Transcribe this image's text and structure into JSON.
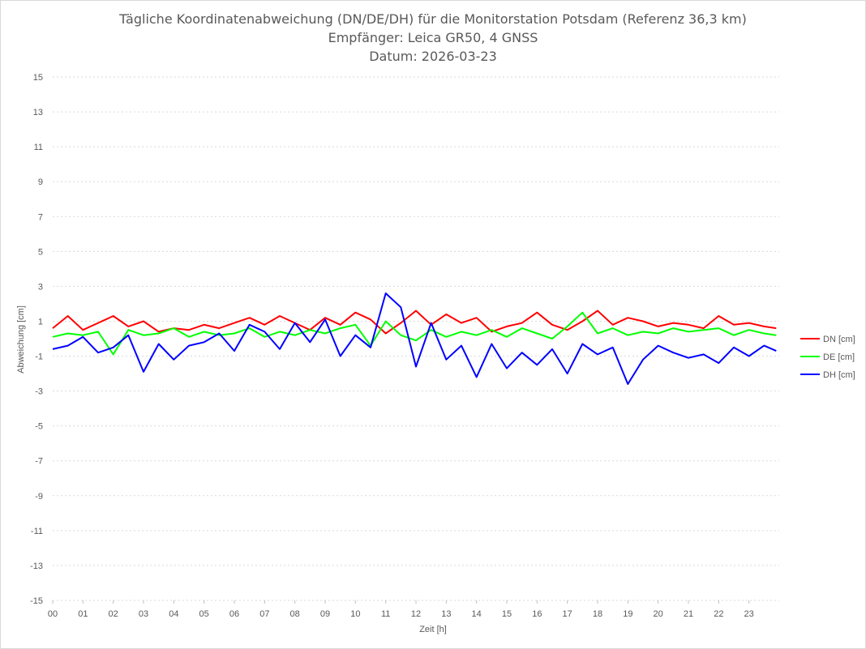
{
  "chart_data": {
    "type": "line",
    "title_lines": [
      "Tägliche Koordinatenabweichung (DN/DE/DH) für die Monitorstation Potsdam (Referenz 36,3 km)",
      "Empfänger: Leica GR50, 4 GNSS",
      "Datum: 2026-03-23"
    ],
    "xlabel": "Zeit [h]",
    "ylabel": "Abweichung [cm]",
    "xlim": [
      0,
      24
    ],
    "ylim": [
      -15,
      15
    ],
    "y_ticks": [
      15,
      13,
      11,
      9,
      7,
      5,
      3,
      1,
      -1,
      -3,
      -5,
      -7,
      -9,
      -11,
      -13,
      -15
    ],
    "x_ticks": [
      "00",
      "01",
      "02",
      "03",
      "04",
      "05",
      "06",
      "07",
      "08",
      "09",
      "10",
      "11",
      "12",
      "13",
      "14",
      "15",
      "16",
      "17",
      "18",
      "19",
      "20",
      "21",
      "22",
      "23"
    ],
    "grid": "horizontal dashed",
    "legend_position": "right",
    "series": [
      {
        "name": "DN [cm]",
        "color": "#ff0000",
        "x": [
          0,
          0.5,
          1,
          1.5,
          2,
          2.5,
          3,
          3.5,
          4,
          4.5,
          5,
          5.5,
          6,
          6.5,
          7,
          7.5,
          8,
          8.5,
          9,
          9.5,
          10,
          10.5,
          11,
          11.5,
          12,
          12.5,
          13,
          13.5,
          14,
          14.5,
          15,
          15.5,
          16,
          16.5,
          17,
          17.5,
          18,
          18.5,
          19,
          19.5,
          20,
          20.5,
          21,
          21.5,
          22,
          22.5,
          23,
          23.5,
          23.9
        ],
        "values": [
          0.6,
          1.3,
          0.5,
          0.9,
          1.3,
          0.7,
          1.0,
          0.4,
          0.6,
          0.5,
          0.8,
          0.6,
          0.9,
          1.2,
          0.8,
          1.3,
          0.9,
          0.5,
          1.2,
          0.8,
          1.5,
          1.1,
          0.3,
          0.9,
          1.6,
          0.8,
          1.4,
          0.9,
          1.2,
          0.4,
          0.7,
          0.9,
          1.5,
          0.8,
          0.5,
          1.0,
          1.6,
          0.8,
          1.2,
          1.0,
          0.7,
          0.9,
          0.8,
          0.6,
          1.3,
          0.8,
          0.9,
          0.7,
          0.6
        ]
      },
      {
        "name": "DE [cm]",
        "color": "#00ff00",
        "x": [
          0,
          0.5,
          1,
          1.5,
          2,
          2.5,
          3,
          3.5,
          4,
          4.5,
          5,
          5.5,
          6,
          6.5,
          7,
          7.5,
          8,
          8.5,
          9,
          9.5,
          10,
          10.5,
          11,
          11.5,
          12,
          12.5,
          13,
          13.5,
          14,
          14.5,
          15,
          15.5,
          16,
          16.5,
          17,
          17.5,
          18,
          18.5,
          19,
          19.5,
          20,
          20.5,
          21,
          21.5,
          22,
          22.5,
          23,
          23.5,
          23.9
        ],
        "values": [
          0.1,
          0.3,
          0.2,
          0.4,
          -0.9,
          0.5,
          0.2,
          0.3,
          0.6,
          0.1,
          0.4,
          0.2,
          0.3,
          0.6,
          0.1,
          0.4,
          0.2,
          0.5,
          0.3,
          0.6,
          0.8,
          -0.4,
          1.0,
          0.2,
          -0.1,
          0.5,
          0.1,
          0.4,
          0.2,
          0.5,
          0.1,
          0.6,
          0.3,
          0.0,
          0.7,
          1.5,
          0.3,
          0.6,
          0.2,
          0.4,
          0.3,
          0.6,
          0.4,
          0.5,
          0.6,
          0.2,
          0.5,
          0.3,
          0.2
        ]
      },
      {
        "name": "DH [cm]",
        "color": "#0000ff",
        "x": [
          0,
          0.5,
          1,
          1.5,
          2,
          2.5,
          3,
          3.5,
          4,
          4.5,
          5,
          5.5,
          6,
          6.5,
          7,
          7.5,
          8,
          8.5,
          9,
          9.5,
          10,
          10.5,
          11,
          11.5,
          12,
          12.5,
          13,
          13.5,
          14,
          14.5,
          15,
          15.5,
          16,
          16.5,
          17,
          17.5,
          18,
          18.5,
          19,
          19.5,
          20,
          20.5,
          21,
          21.5,
          22,
          22.5,
          23,
          23.5,
          23.9
        ],
        "values": [
          -0.6,
          -0.4,
          0.1,
          -0.8,
          -0.5,
          0.2,
          -1.9,
          -0.3,
          -1.2,
          -0.4,
          -0.2,
          0.3,
          -0.7,
          0.8,
          0.4,
          -0.6,
          0.9,
          -0.2,
          1.1,
          -1.0,
          0.2,
          -0.5,
          2.6,
          1.8,
          -1.6,
          0.9,
          -1.2,
          -0.4,
          -2.2,
          -0.3,
          -1.7,
          -0.8,
          -1.5,
          -0.6,
          -2.0,
          -0.3,
          -0.9,
          -0.5,
          -2.6,
          -1.2,
          -0.4,
          -0.8,
          -1.1,
          -0.9,
          -1.4,
          -0.5,
          -1.0,
          -0.4,
          -0.7
        ]
      }
    ]
  }
}
